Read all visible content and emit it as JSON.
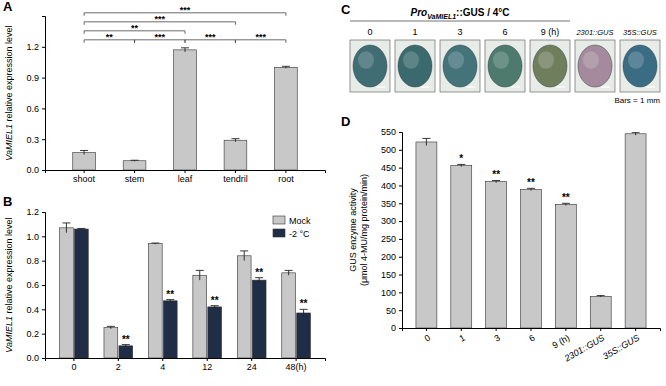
{
  "chart_data": [
    {
      "panel": "A",
      "type": "bar",
      "y_label": "VaMIEL1 relative expression level",
      "categories": [
        "shoot",
        "stem",
        "leaf",
        "tendril",
        "root"
      ],
      "values": [
        0.17,
        0.09,
        1.17,
        0.29,
        1.0
      ],
      "errors": [
        0.02,
        0.005,
        0.02,
        0.015,
        0.01
      ],
      "color": "#c8c8c8",
      "ylim": [
        0,
        1.5
      ],
      "yticks": [
        {
          "value": 0,
          "label": "0.0"
        },
        0.3,
        0.6,
        0.9,
        1.2
      ],
      "grid": false,
      "comparisons": [
        {
          "pair": [
            "shoot",
            "stem"
          ],
          "label": "**"
        },
        {
          "pair": [
            "stem",
            "leaf"
          ],
          "label": "***"
        },
        {
          "pair": [
            "leaf",
            "tendril"
          ],
          "label": "***"
        },
        {
          "pair": [
            "tendril",
            "root"
          ],
          "label": "***"
        },
        {
          "pair": [
            "shoot",
            "leaf"
          ],
          "label": "**"
        },
        {
          "pair": [
            "shoot",
            "tendril"
          ],
          "label": "***"
        },
        {
          "pair": [
            "shoot",
            "root"
          ],
          "label": "***"
        }
      ]
    },
    {
      "panel": "B",
      "type": "bar",
      "y_label": "VaMIEL1 relative expression level",
      "categories": [
        "0",
        "2",
        "4",
        "12",
        "24",
        "48(h)"
      ],
      "series": [
        {
          "name": "Mock",
          "color": "#c8c8c8",
          "values": [
            1.07,
            0.25,
            0.94,
            0.68,
            0.84,
            0.7
          ],
          "errors": [
            0.04,
            0.01,
            0.005,
            0.04,
            0.04,
            0.02
          ]
        },
        {
          "name": "-2 °C",
          "color": "#1f2d47",
          "values": [
            1.06,
            0.1,
            0.47,
            0.42,
            0.64,
            0.37
          ],
          "errors": [
            0.005,
            0.01,
            0.01,
            0.01,
            0.02,
            0.03
          ],
          "significance": [
            null,
            "**",
            "**",
            "**",
            "**",
            "**"
          ]
        }
      ],
      "ylim": [
        0,
        1.2
      ],
      "yticks": [
        {
          "value": 0,
          "label": "0.0"
        },
        0.2,
        0.4,
        0.6,
        0.8,
        {
          "value": 1,
          "label": "1.0"
        },
        1.2
      ],
      "legend": "top-right",
      "grid": false
    },
    {
      "panel": "D",
      "type": "bar",
      "y_label": [
        "GUS enzyme activity",
        "(μmol 4-MU/mg protein/min)"
      ],
      "categories": [
        "0",
        "1",
        "3",
        "6",
        "9 (h)",
        "2301::GUS",
        "35S::GUS"
      ],
      "values": [
        522,
        456,
        411,
        389,
        347,
        89,
        545
      ],
      "errors": [
        10,
        3,
        3,
        3,
        3,
        2,
        4
      ],
      "significance": [
        null,
        "*",
        "**",
        "**",
        "**",
        null,
        null
      ],
      "color": "#c8c8c8",
      "ylim": [
        0,
        550
      ],
      "yticks": [
        0,
        50,
        100,
        150,
        200,
        250,
        300,
        350,
        400,
        450,
        500,
        550
      ],
      "grid": false
    }
  ],
  "images": {
    "panel": "C",
    "title": "Pro",
    "title_subscript": "VaMIEL1",
    "title_rest": "::GUS / 4°C",
    "items": [
      {
        "label": "0",
        "color": "#3f6d73"
      },
      {
        "label": "1",
        "color": "#3b6a6e"
      },
      {
        "label": "3",
        "color": "#44737a"
      },
      {
        "label": "6",
        "color": "#4e7a6d"
      },
      {
        "label": "9 (h)",
        "color": "#6f7f5e"
      },
      {
        "label": "2301::GUS",
        "color": "#a48a9c"
      },
      {
        "label": "35S::GUS",
        "color": "#3a6c84"
      }
    ],
    "scale_note": "Bars = 1 mm"
  }
}
